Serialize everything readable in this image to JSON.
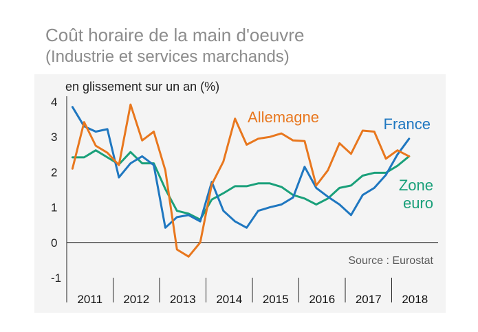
{
  "title": "Coût horaire de la main d'oeuvre",
  "subtitle": "(Industrie et services marchands)",
  "colors": {
    "France": "#1f77c0",
    "Allemagne": "#e8771e",
    "Zone euro": "#1aa07a",
    "panel": "#f4f4f4"
  },
  "chart_data": {
    "type": "line",
    "title": "Coût horaire de la main d'oeuvre",
    "subtitle": "(Industrie et services marchands)",
    "ylabel": "en glissement sur un an (%)",
    "source": "Source : Eurostat",
    "ylim": [
      -1,
      4
    ],
    "yticks": [
      4,
      3,
      2,
      1,
      0,
      -1
    ],
    "years": [
      "2011",
      "2012",
      "2013",
      "2014",
      "2015",
      "2016",
      "2017",
      "2018"
    ],
    "x_quarters_start": "2011 T1",
    "series": [
      {
        "name": "France",
        "label_lines": [
          "France"
        ],
        "values": [
          3.85,
          3.3,
          3.15,
          3.22,
          1.85,
          2.25,
          2.45,
          2.2,
          0.42,
          0.72,
          0.78,
          0.6,
          1.72,
          0.9,
          0.6,
          0.42,
          0.9,
          1.0,
          1.08,
          1.28,
          2.15,
          1.55,
          1.3,
          1.08,
          0.78,
          1.35,
          1.55,
          1.92,
          2.5,
          2.95
        ]
      },
      {
        "name": "Allemagne",
        "label_lines": [
          "Allemagne"
        ],
        "values": [
          2.1,
          3.42,
          2.75,
          2.55,
          2.2,
          3.92,
          2.9,
          3.15,
          2.05,
          -0.2,
          -0.4,
          0.0,
          1.65,
          2.3,
          3.52,
          2.78,
          2.95,
          3.0,
          3.1,
          2.9,
          2.88,
          1.62,
          2.05,
          2.82,
          2.52,
          3.18,
          3.15,
          2.38,
          2.62,
          2.45
        ]
      },
      {
        "name": "Zone euro",
        "label_lines": [
          "Zone",
          "euro"
        ],
        "values": [
          2.42,
          2.42,
          2.62,
          2.42,
          2.22,
          2.57,
          2.25,
          2.25,
          1.52,
          0.9,
          0.82,
          0.65,
          1.22,
          1.4,
          1.6,
          1.6,
          1.68,
          1.68,
          1.58,
          1.35,
          1.25,
          1.08,
          1.25,
          1.55,
          1.62,
          1.9,
          1.98,
          1.98,
          2.18,
          2.45
        ]
      }
    ]
  }
}
